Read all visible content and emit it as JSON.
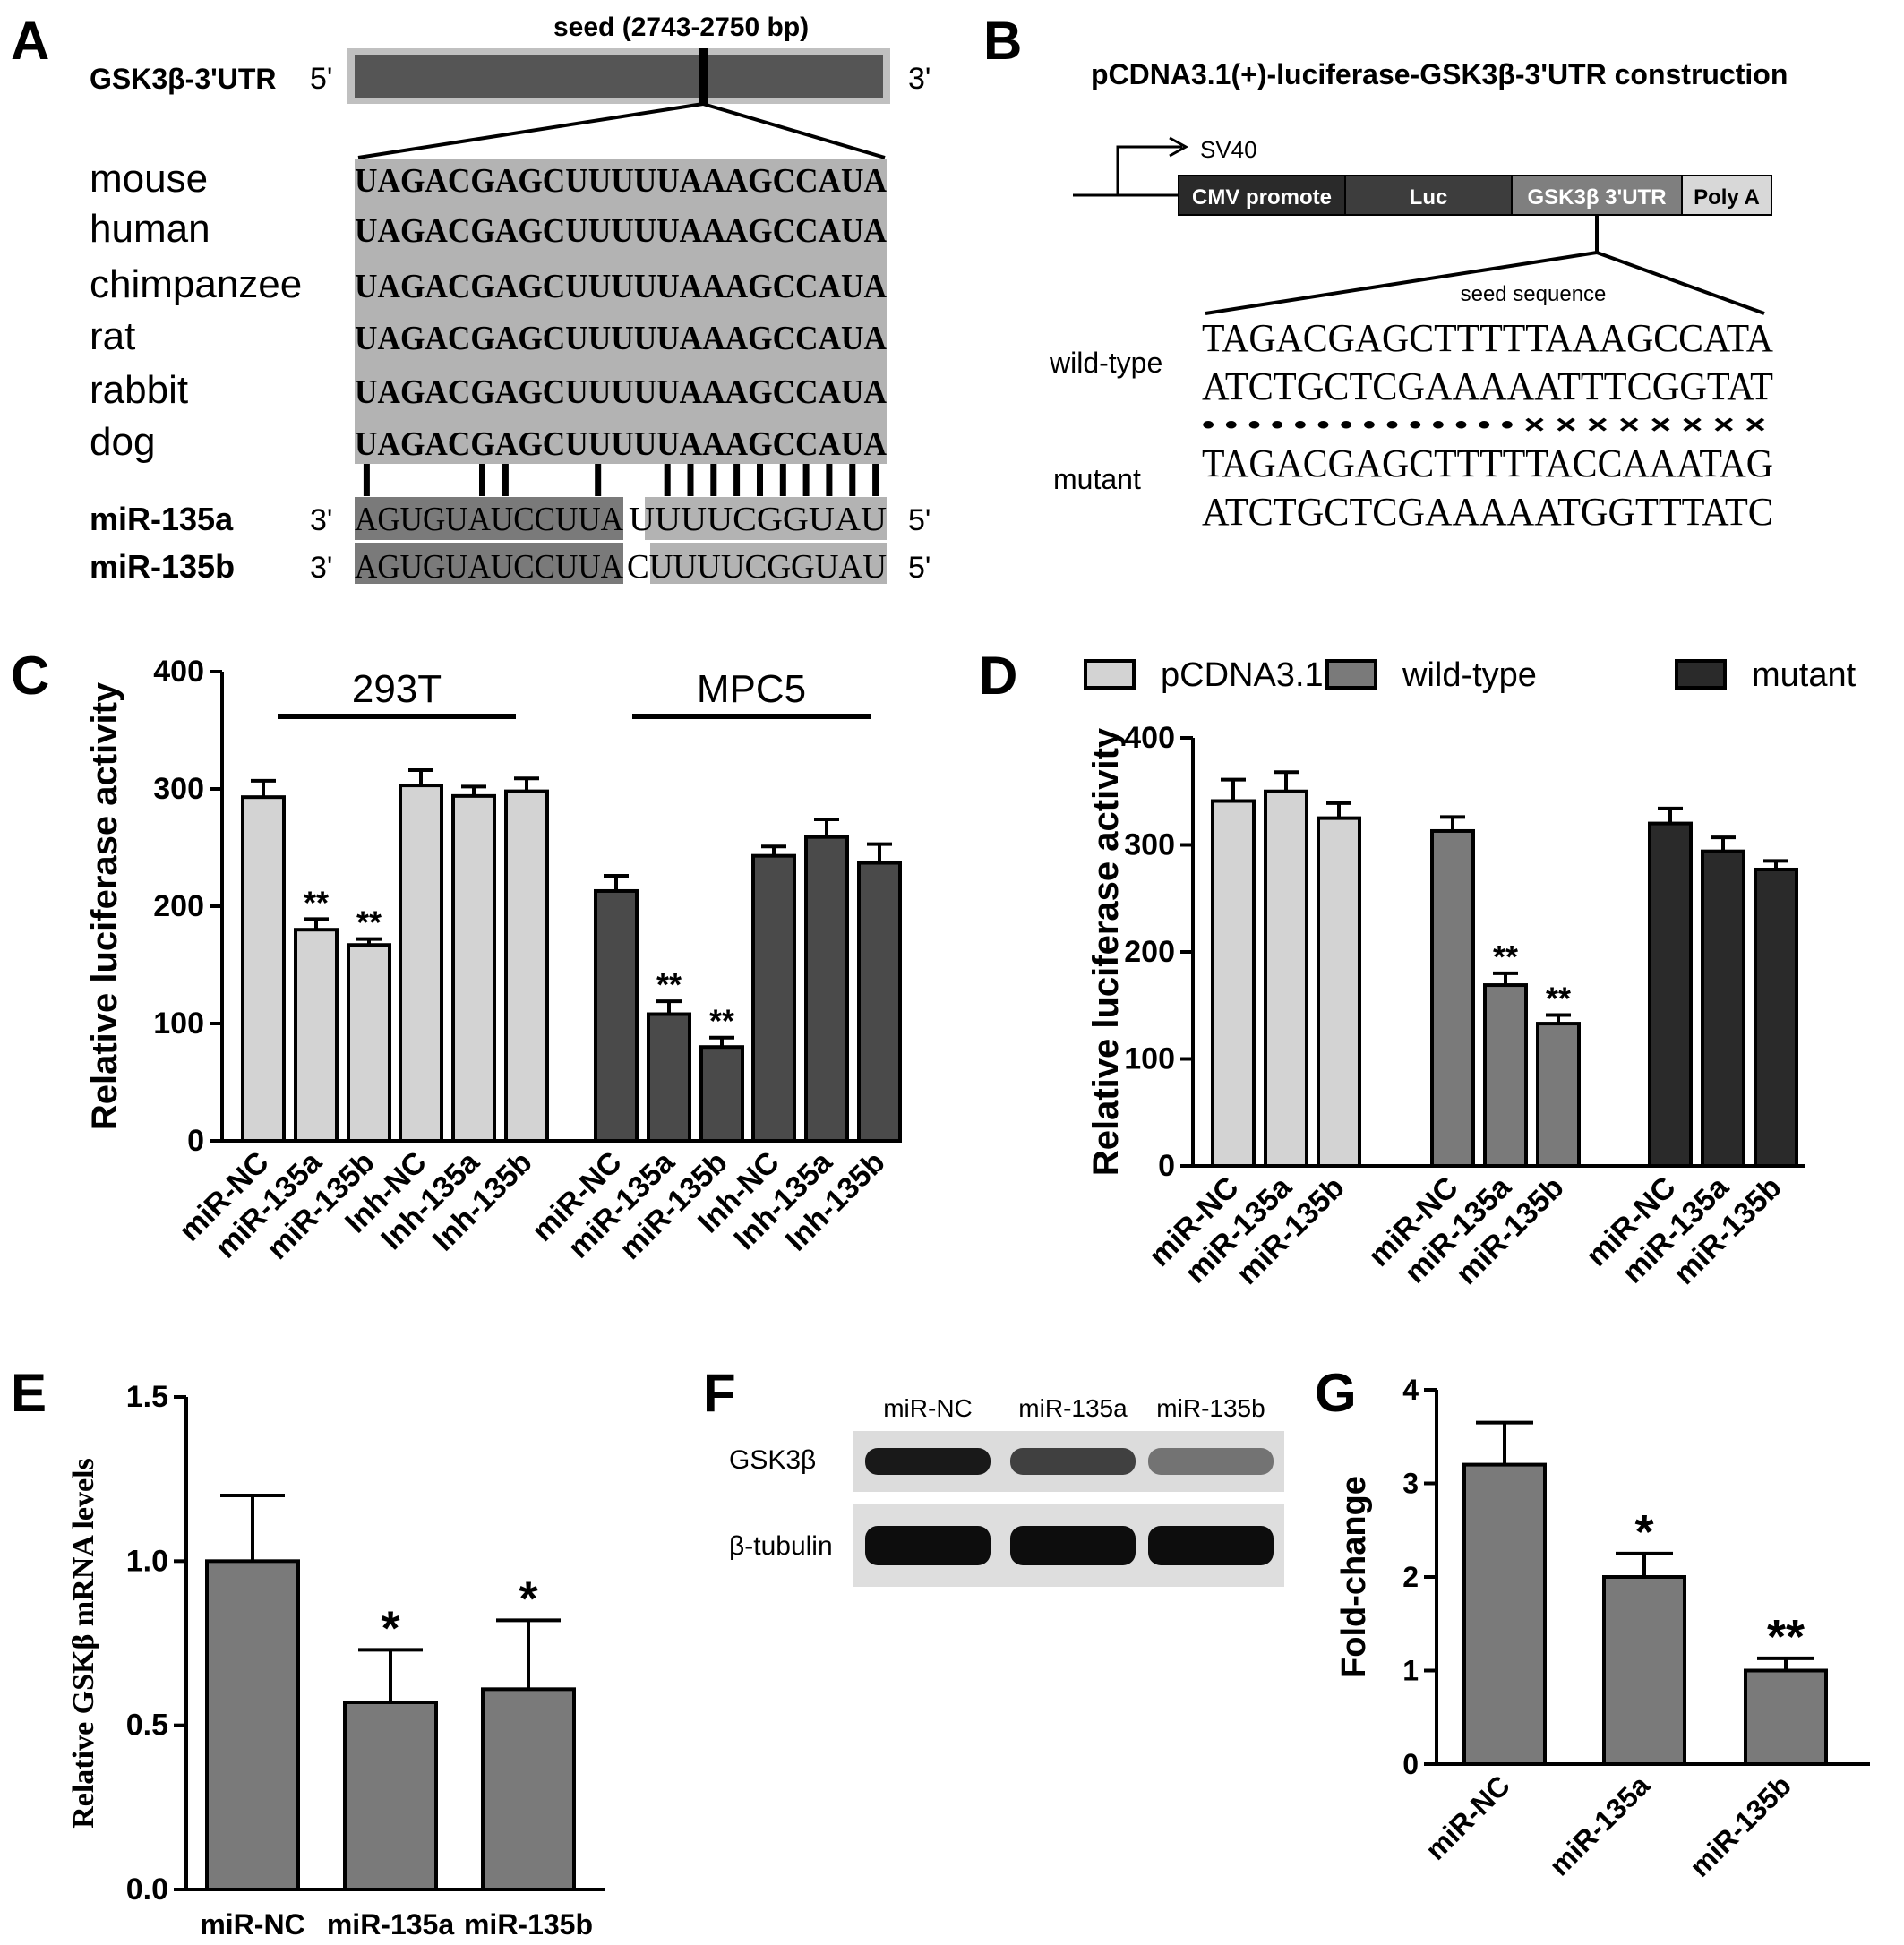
{
  "panel_letters": [
    "A",
    "B",
    "C",
    "D",
    "E",
    "F",
    "G"
  ],
  "panel_a": {
    "gene_label": "GSK3β-3'UTR",
    "five_prime": "5'",
    "three_prime": "3'",
    "seed_label": "seed (2743-2750 bp)",
    "species": [
      "mouse",
      "human",
      "chimpanzee",
      "rat",
      "rabbit",
      "dog"
    ],
    "utr_sequence": "UAGACGAGCUUUUUAAAGCCAUA",
    "pair_marks": "|    ||   |  |||||||||||",
    "mirnas": [
      {
        "name": "miR-135a",
        "left_end": "3'",
        "seq_part1": "AGUGUAUCCUUA",
        "seq_part2": "UUUUCGGUAU",
        "right_end": "5'"
      },
      {
        "name": "miR-135b",
        "left_end": "3'",
        "seq_part1": "AGUGUAUCCUUA",
        "seq_part2": "CUUUUCGGUAU",
        "right_end": "5'"
      }
    ]
  },
  "panel_b": {
    "title": "pCDNA3.1(+)-luciferase-GSK3β-3'UTR construction",
    "promoter_label": "SV40",
    "segments": [
      "CMV promote",
      "Luc",
      "GSK3β 3'UTR",
      "Poly A"
    ],
    "seed_sequence_label": "seed sequence",
    "wild_type_label": "wild-type",
    "mutant_label": "mutant",
    "wt_top": "TAGACGAGCTTTTTAAAGCCATA",
    "wt_bottom": "ATCTGCTCGAAAAATTTCGGTAT",
    "match_marks": "• • • • • • • • • • • • • • × × × × × × × ×",
    "mut_top": "TAGACGAGCTTTTTACCAAATAG",
    "mut_bottom": "ATCTGCTCGAAAAATGGTTTATC"
  },
  "panel_f": {
    "lane_labels": [
      "miR-NC",
      "miR-135a",
      "miR-135b"
    ],
    "row_labels": [
      "GSK3β",
      "β-tubulin"
    ],
    "band_intensity": {
      "GSK3β": [
        0.9,
        0.75,
        0.55
      ],
      "β-tubulin": [
        0.95,
        0.95,
        0.95
      ]
    }
  },
  "chart_data": [
    {
      "panel": "C",
      "type": "bar",
      "ylabel": "Relative luciferase activity",
      "ylim": [
        0,
        400
      ],
      "yticks": [
        0,
        100,
        200,
        300,
        400
      ],
      "groups": [
        {
          "label": "293T",
          "categories": [
            "miR-NC",
            "miR-135a",
            "miR-135b",
            "Inh-NC",
            "Inh-135a",
            "Inh-135b"
          ],
          "values": [
            293,
            180,
            167,
            303,
            294,
            298
          ],
          "errors": [
            14,
            9,
            5,
            13,
            8,
            11
          ],
          "annotations": [
            "",
            "**",
            "**",
            "",
            "",
            ""
          ],
          "color": "#d3d3d3"
        },
        {
          "label": "MPC5",
          "categories": [
            "miR-NC",
            "miR-135a",
            "miR-135b",
            "Inh-NC",
            "Inh-135a",
            "Inh-135b"
          ],
          "values": [
            213,
            108,
            80,
            243,
            259,
            237
          ],
          "errors": [
            13,
            11,
            8,
            8,
            15,
            16
          ],
          "annotations": [
            "",
            "**",
            "**",
            "",
            "",
            ""
          ],
          "color": "#4a4a4a"
        }
      ]
    },
    {
      "panel": "D",
      "type": "bar",
      "ylabel": "Relative luciferase activity",
      "ylim": [
        0,
        400
      ],
      "yticks": [
        0,
        100,
        200,
        300,
        400
      ],
      "legend": [
        "pCDNA3.1-luc",
        "wild-type",
        "mutant"
      ],
      "legend_position": "top",
      "groups": [
        {
          "label": "pCDNA3.1-luc",
          "categories": [
            "miR-NC",
            "miR-135a",
            "miR-135b"
          ],
          "values": [
            341,
            350,
            325
          ],
          "errors": [
            20,
            18,
            14
          ],
          "annotations": [
            "",
            "",
            ""
          ],
          "color": "#d3d3d3"
        },
        {
          "label": "wild-type",
          "categories": [
            "miR-NC",
            "miR-135a",
            "miR-135b"
          ],
          "values": [
            313,
            169,
            133
          ],
          "errors": [
            13,
            11,
            8
          ],
          "annotations": [
            "",
            "**",
            "**"
          ],
          "color": "#7a7a7a"
        },
        {
          "label": "mutant",
          "categories": [
            "miR-NC",
            "miR-135a",
            "miR-135b"
          ],
          "values": [
            320,
            294,
            277
          ],
          "errors": [
            14,
            13,
            8
          ],
          "annotations": [
            "",
            "",
            ""
          ],
          "color": "#2a2a2a"
        }
      ]
    },
    {
      "panel": "E",
      "type": "bar",
      "ylabel": "Relative GSKβ mRNA levels",
      "ylim": [
        0,
        1.5
      ],
      "yticks": [
        "0.0",
        "0.5",
        "1.0",
        "1.5"
      ],
      "categories": [
        "miR-NC",
        "miR-135a",
        "miR-135b"
      ],
      "values": [
        1.0,
        0.57,
        0.61
      ],
      "errors": [
        0.2,
        0.16,
        0.21
      ],
      "annotations": [
        "",
        "*",
        "*"
      ],
      "color": "#7a7a7a"
    },
    {
      "panel": "G",
      "type": "bar",
      "ylabel": "Fold-change",
      "ylim": [
        0,
        4
      ],
      "yticks": [
        0,
        1,
        2,
        3,
        4
      ],
      "categories": [
        "miR-NC",
        "miR-135a",
        "miR-135b"
      ],
      "values": [
        3.2,
        2.0,
        1.0
      ],
      "errors": [
        0.45,
        0.25,
        0.13
      ],
      "annotations": [
        "",
        "*",
        "**"
      ],
      "color": "#7a7a7a"
    }
  ]
}
